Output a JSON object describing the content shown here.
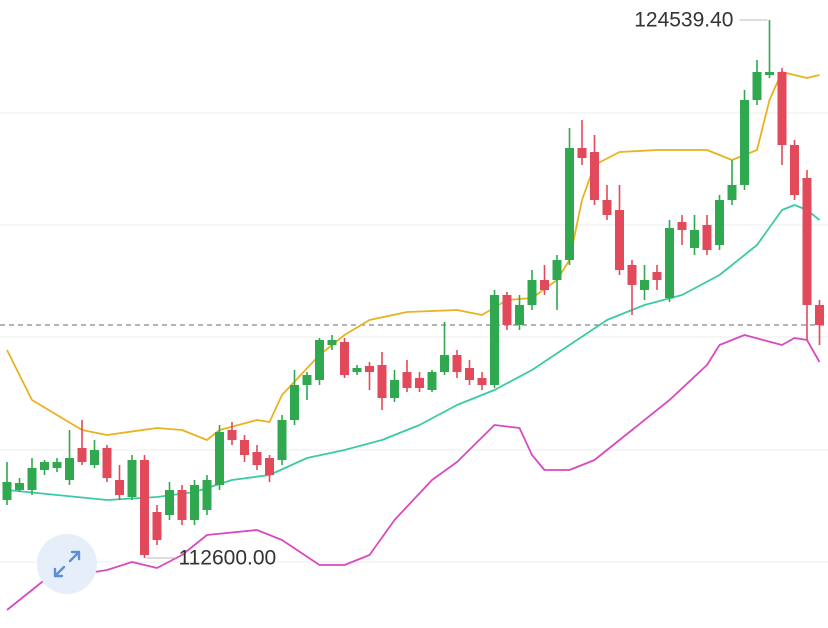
{
  "chart_data": {
    "type": "candlestick",
    "ylim": [
      111048,
      124983
    ],
    "gridlines": [
      122476,
      119990,
      117505,
      114998,
      112512
    ],
    "up_color": "#2fa84f",
    "down_color": "#e2495a",
    "open": [
      113888,
      114110,
      114110,
      114554,
      114598,
      114332,
      115042,
      114665,
      115042,
      114332,
      113955,
      114776,
      113622,
      113555,
      114110,
      113444,
      113666,
      114221,
      115441,
      115219,
      114953,
      114820,
      114776,
      115663,
      116440,
      116551,
      117327,
      117394,
      116728,
      116861,
      116884,
      116151,
      116728,
      116595,
      116329,
      116728,
      117106,
      116817,
      116595,
      116440,
      118437,
      117771,
      118215,
      118770,
      118770,
      119214,
      121699,
      121610,
      120545,
      120323,
      119103,
      118548,
      118947,
      118370,
      120057,
      119480,
      119990,
      119546,
      120545,
      120878,
      122764,
      123319,
      123385,
      121765,
      121033,
      118215
    ],
    "high": [
      114731,
      114376,
      114820,
      114776,
      114820,
      115441,
      115663,
      115219,
      115108,
      114665,
      114887,
      114887,
      113777,
      114287,
      114221,
      114332,
      114443,
      115552,
      115619,
      115330,
      115108,
      114887,
      115774,
      116773,
      116728,
      117483,
      117549,
      117483,
      116884,
      116950,
      117172,
      116773,
      116995,
      116728,
      116773,
      117838,
      117216,
      116995,
      116728,
      118548,
      118504,
      118437,
      118992,
      119103,
      119325,
      122143,
      122320,
      121987,
      120878,
      120878,
      119214,
      119103,
      119103,
      120101,
      120212,
      120212,
      120212,
      120656,
      121433,
      122986,
      123652,
      124539.4,
      123474,
      121876,
      121211,
      118326
    ],
    "low": [
      113777,
      114066,
      113999,
      114443,
      114509,
      114221,
      114665,
      114598,
      114287,
      113888,
      113888,
      112600,
      112889,
      113444,
      113333,
      113333,
      113555,
      114110,
      115108,
      114731,
      114554,
      114287,
      114665,
      115552,
      116107,
      116440,
      117216,
      116595,
      116662,
      116329,
      115885,
      116063,
      116285,
      116285,
      116285,
      116662,
      116595,
      116440,
      116329,
      116373,
      117660,
      117660,
      118104,
      118437,
      118104,
      119103,
      121322,
      120434,
      120101,
      118881,
      117993,
      118326,
      118548,
      118282,
      119546,
      119325,
      119325,
      119435,
      120434,
      120767,
      122653,
      123252,
      121322,
      120545,
      117438,
      117327
    ],
    "close": [
      114287,
      114265,
      114598,
      114731,
      114731,
      114820,
      114731,
      114997,
      114376,
      113999,
      114776,
      112668,
      113000,
      114110,
      113444,
      114221,
      114332,
      115397,
      115219,
      114887,
      114665,
      114443,
      115663,
      116440,
      116662,
      117438,
      117438,
      116662,
      116817,
      116728,
      116151,
      116551,
      116373,
      116373,
      116728,
      117106,
      116728,
      116551,
      116440,
      118437,
      117771,
      118215,
      118770,
      118548,
      119214,
      121699,
      121477,
      120545,
      120212,
      118992,
      118659,
      118770,
      118770,
      119924,
      119879,
      119879,
      119435,
      120545,
      120878,
      122764,
      123385,
      123385,
      121765,
      120656,
      118215,
      117771
    ],
    "series": [
      {
        "color": "#e8b320",
        "x": [
          0,
          2,
          6,
          8,
          12,
          14,
          16,
          17,
          20,
          21,
          22,
          25,
          27,
          29,
          32,
          36,
          38,
          40,
          42,
          44,
          45,
          46,
          47,
          49,
          52,
          56,
          58,
          60,
          61,
          62,
          63,
          64,
          65
        ],
        "values": [
          117216,
          116107,
          115441,
          115330,
          115486,
          115441,
          115219,
          115441,
          115663,
          115619,
          116218,
          117106,
          117549,
          117882,
          118060,
          118104,
          117993,
          118326,
          118370,
          118770,
          119214,
          120545,
          121322,
          121610,
          121654,
          121654,
          121433,
          121654,
          122764,
          123385,
          123319,
          123252,
          123319
        ]
      },
      {
        "color": "#3ccaa6",
        "x": [
          0,
          4,
          8,
          12,
          15,
          18,
          21,
          24,
          27,
          30,
          33,
          36,
          39,
          42,
          45,
          48,
          51,
          54,
          57,
          60,
          62,
          63,
          64,
          65
        ],
        "values": [
          114110,
          113999,
          113888,
          113955,
          114066,
          114332,
          114443,
          114820,
          114997,
          115219,
          115552,
          115996,
          116329,
          116773,
          117327,
          117882,
          118215,
          118437,
          118881,
          119546,
          120323,
          120434,
          120323,
          120101
        ]
      },
      {
        "color": "#d84bbf",
        "x": [
          0,
          3,
          8,
          10,
          12,
          14,
          16,
          20,
          22,
          25,
          27,
          29,
          31,
          34,
          36,
          39,
          41,
          42,
          43,
          45,
          47,
          50,
          53,
          56,
          57,
          59,
          62,
          63,
          64,
          65
        ],
        "values": [
          111447,
          112113,
          112335,
          112512,
          112379,
          112668,
          113111,
          113222,
          113000,
          112446,
          112446,
          112668,
          113444,
          114332,
          114731,
          115552,
          115486,
          114887,
          114554,
          114554,
          114776,
          115441,
          116107,
          116884,
          117327,
          117549,
          117327,
          117483,
          117438,
          116950
        ]
      }
    ],
    "annotations": {
      "high_label": "124539.40",
      "low_label": "112600.00"
    }
  }
}
